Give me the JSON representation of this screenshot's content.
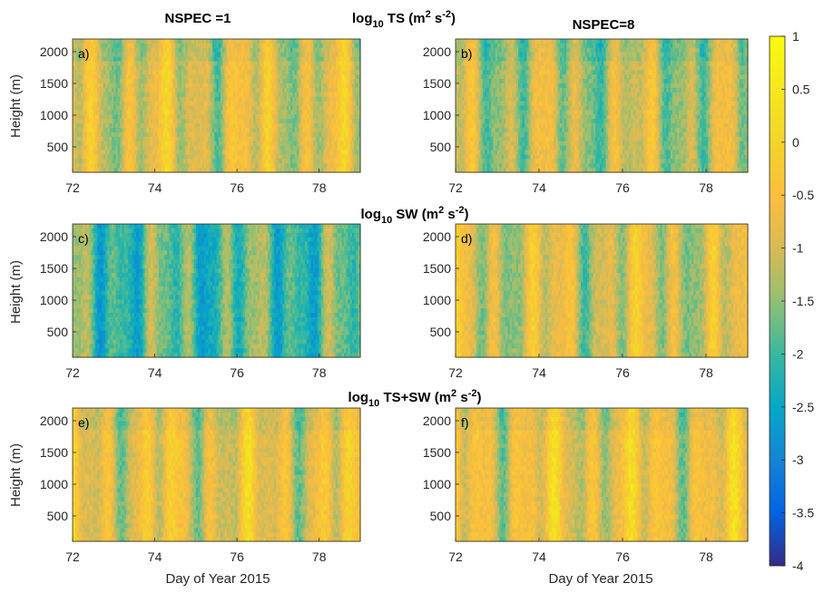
{
  "chart_data": {
    "type": "heatmap",
    "colormap": "parula",
    "colorbar": {
      "ticks": [
        "1",
        "0.5",
        "0",
        "-0.5",
        "-1",
        "-1.5",
        "-2",
        "-2.5",
        "-3",
        "-3.5",
        "-4"
      ],
      "range": [
        -4,
        1
      ]
    },
    "column_titles": {
      "left": "NSPEC =1",
      "right": "NSPEC=8"
    },
    "row_titles": [
      {
        "base": "log",
        "sub": "10",
        "main": " TS (m",
        "sup1": "2",
        "mid": " s",
        "sup2": "-2",
        "end": ")"
      },
      {
        "base": "log",
        "sub": "10",
        "main": " SW (m",
        "sup1": "2",
        "mid": " s",
        "sup2": "-2",
        "end": ")"
      },
      {
        "base": "log",
        "sub": "10",
        "main": " TS+SW (m",
        "sup1": "2",
        "mid": " s",
        "sup2": "-2",
        "end": ")"
      }
    ],
    "xlabel": "Day of Year 2015",
    "ylabel": "Height (m)",
    "x_ticks": [
      "72",
      "74",
      "76",
      "78"
    ],
    "y_ticks": [
      "2000",
      "1500",
      "1000",
      "500"
    ],
    "xlim": [
      72,
      79
    ],
    "ylim": [
      100,
      2200
    ],
    "panels": [
      {
        "label": "a)",
        "quantity": "TS",
        "nspec": 1,
        "mean_level": -0.9
      },
      {
        "label": "b)",
        "quantity": "TS",
        "nspec": 8,
        "mean_level": -1.2
      },
      {
        "label": "c)",
        "quantity": "SW",
        "nspec": 1,
        "mean_level": -1.9
      },
      {
        "label": "d)",
        "quantity": "SW",
        "nspec": 8,
        "mean_level": -1.0
      },
      {
        "label": "e)",
        "quantity": "TS+SW",
        "nspec": 1,
        "mean_level": -0.8
      },
      {
        "label": "f)",
        "quantity": "TS+SW",
        "nspec": 8,
        "mean_level": -0.7
      }
    ]
  }
}
